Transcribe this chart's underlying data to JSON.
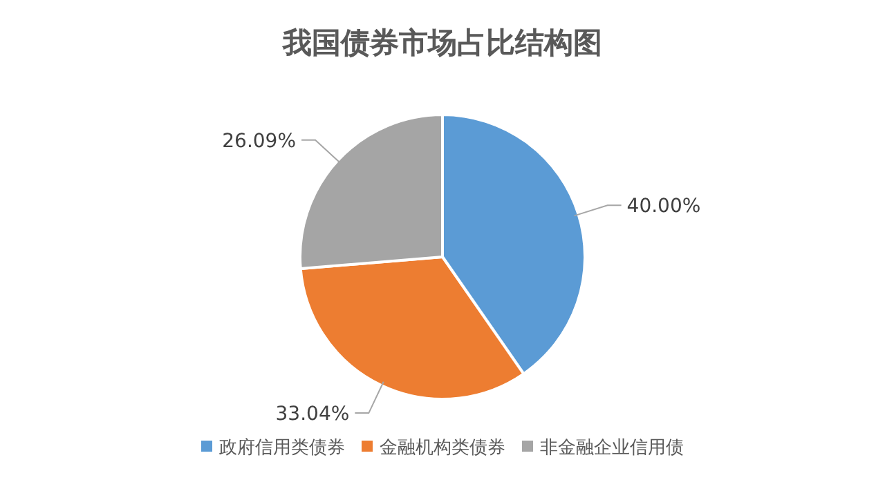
{
  "chart_data": {
    "type": "pie",
    "title": "我国债券市场占比结构图",
    "categories": [
      "政府信用类债券",
      "金融机构类债券",
      "非金融企业信用债"
    ],
    "values": [
      40.0,
      33.04,
      26.09
    ],
    "value_labels": [
      "40.00%",
      "33.04%",
      "26.09%"
    ],
    "colors": [
      "#5b9bd5",
      "#ed7d31",
      "#a5a5a5"
    ],
    "legend": "bottom"
  }
}
